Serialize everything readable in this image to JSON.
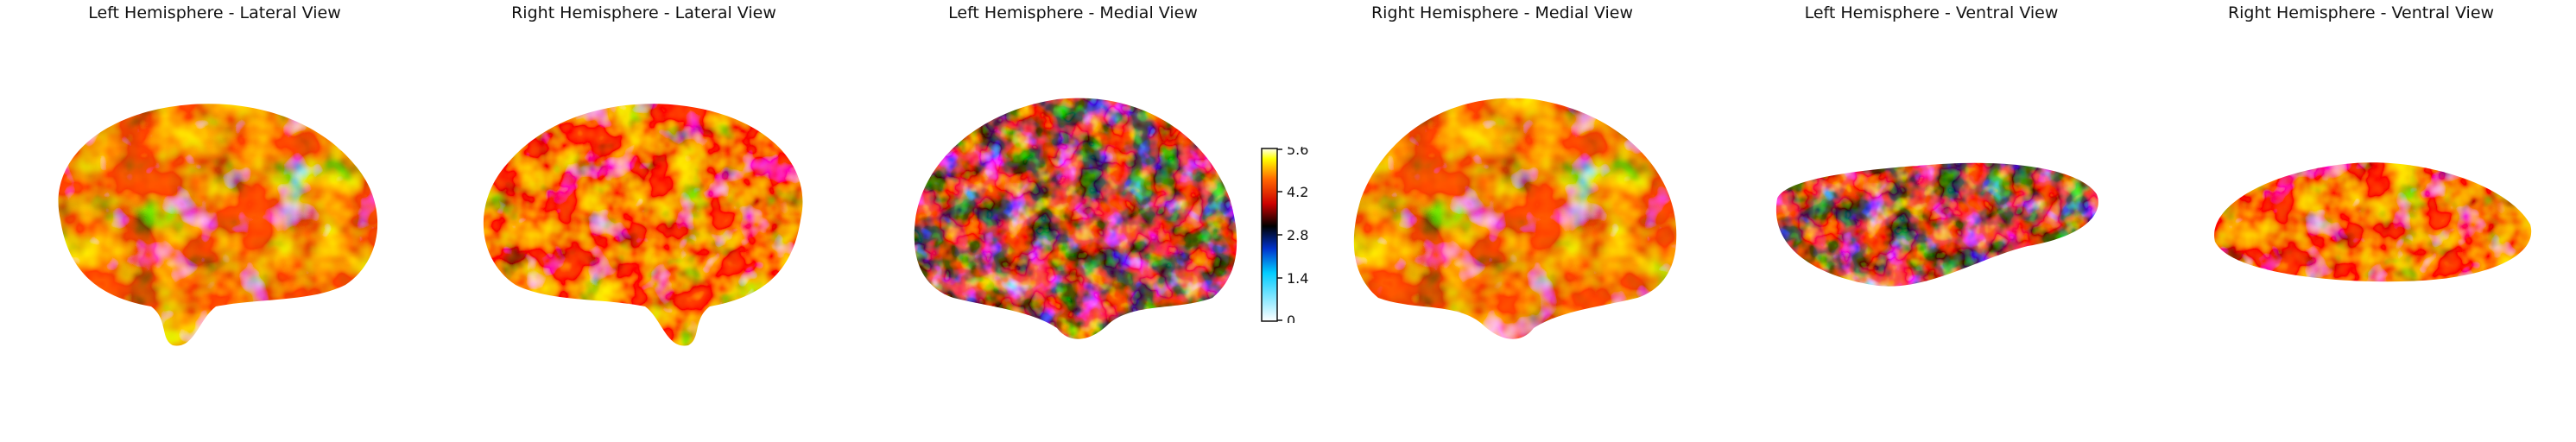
{
  "panels": [
    {
      "title": "Left Hemisphere - Lateral View"
    },
    {
      "title": "Right Hemisphere - Lateral View"
    },
    {
      "title": "Left Hemisphere - Medial View"
    },
    {
      "title": "Right Hemisphere - Medial View"
    },
    {
      "title": "Left Hemisphere - Ventral View"
    },
    {
      "title": "Right Hemisphere - Ventral View"
    }
  ],
  "colorbar": {
    "ticks": [
      "0",
      "1.4",
      "2.8",
      "4.2",
      "5.6"
    ],
    "colormap": [
      "#ffffff",
      "#00aaff",
      "#0033cc",
      "#000000",
      "#cc0000",
      "#ff6600",
      "#ffff00",
      "#ffffff"
    ]
  }
}
